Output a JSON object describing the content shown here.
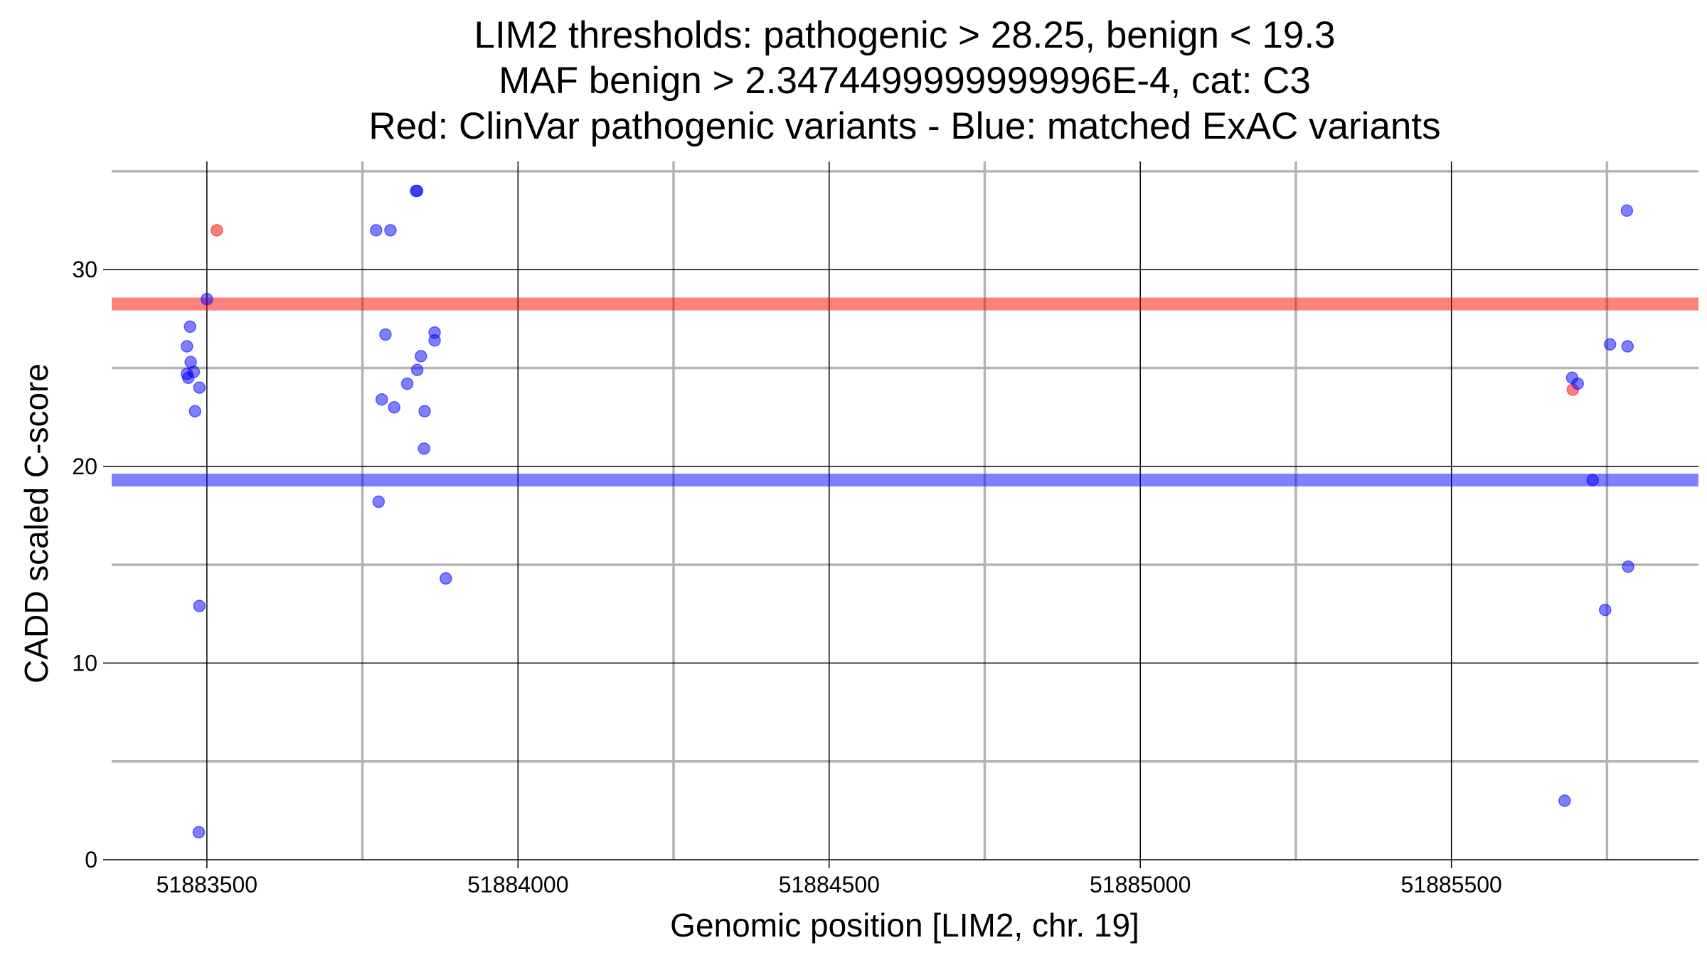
{
  "chart_data": {
    "type": "scatter",
    "title_lines": [
      "LIM2 thresholds: pathogenic > 28.25, benign < 19.3",
      "MAF benign > 2.3474499999999996E-4, cat: C3",
      "Red: ClinVar pathogenic variants - Blue: matched ExAC variants"
    ],
    "xlabel": "Genomic position [LIM2, chr. 19]",
    "ylabel": "CADD scaled C-score",
    "xlim": [
      51883347,
      51885897
    ],
    "ylim": [
      0,
      35.5
    ],
    "x_ticks": [
      51883500,
      51884000,
      51884500,
      51885000,
      51885500
    ],
    "x_tick_labels": [
      "51883500",
      "51884000",
      "51884500",
      "51885000",
      "51885500"
    ],
    "x_minor_ticks": [
      51883750,
      51884250,
      51884750,
      51885250,
      51885750
    ],
    "y_ticks": [
      0,
      10,
      20,
      30
    ],
    "y_tick_labels": [
      "0",
      "10",
      "20",
      "30"
    ],
    "y_minor_ticks": [
      5,
      15,
      25,
      35
    ],
    "grid": true,
    "thresholds": [
      {
        "name": "pathogenic",
        "value": 28.25,
        "color": "#ff0000"
      },
      {
        "name": "benign",
        "value": 19.3,
        "color": "#0000ff"
      }
    ],
    "series": [
      {
        "color": "#ff0000",
        "points": [
          {
            "x": 51883516,
            "y": 32
          },
          {
            "x": 51885695,
            "y": 23.9
          }
        ]
      },
      {
        "color": "#0000ff",
        "points": [
          {
            "x": 51883468,
            "y": 26.1
          },
          {
            "x": 51883468,
            "y": 24.7
          },
          {
            "x": 51883470,
            "y": 24.5
          },
          {
            "x": 51883473,
            "y": 27.1
          },
          {
            "x": 51883474,
            "y": 25.3
          },
          {
            "x": 51883479,
            "y": 24.8
          },
          {
            "x": 51883481,
            "y": 22.8
          },
          {
            "x": 51883488,
            "y": 24.0
          },
          {
            "x": 51883488,
            "y": 12.9
          },
          {
            "x": 51883487,
            "y": 1.4
          },
          {
            "x": 51883500,
            "y": 28.5
          },
          {
            "x": 51883772,
            "y": 32.0
          },
          {
            "x": 51883795,
            "y": 32.0
          },
          {
            "x": 51883836,
            "y": 34.0
          },
          {
            "x": 51883838,
            "y": 34.0
          },
          {
            "x": 51883787,
            "y": 26.7
          },
          {
            "x": 51883781,
            "y": 23.4
          },
          {
            "x": 51883801,
            "y": 23.0
          },
          {
            "x": 51883822,
            "y": 24.2
          },
          {
            "x": 51883838,
            "y": 24.9
          },
          {
            "x": 51883844,
            "y": 25.6
          },
          {
            "x": 51883850,
            "y": 22.8
          },
          {
            "x": 51883849,
            "y": 20.9
          },
          {
            "x": 51883866,
            "y": 26.8
          },
          {
            "x": 51883866,
            "y": 26.4
          },
          {
            "x": 51883776,
            "y": 18.2
          },
          {
            "x": 51883884,
            "y": 14.3
          },
          {
            "x": 51885694,
            "y": 24.5
          },
          {
            "x": 51885703,
            "y": 24.2
          },
          {
            "x": 51885727,
            "y": 19.3
          },
          {
            "x": 51885755,
            "y": 26.2
          },
          {
            "x": 51885783,
            "y": 26.1
          },
          {
            "x": 51885782,
            "y": 33.0
          },
          {
            "x": 51885784,
            "y": 14.9
          },
          {
            "x": 51885747,
            "y": 12.7
          },
          {
            "x": 51885682,
            "y": 3.0
          }
        ]
      }
    ]
  }
}
